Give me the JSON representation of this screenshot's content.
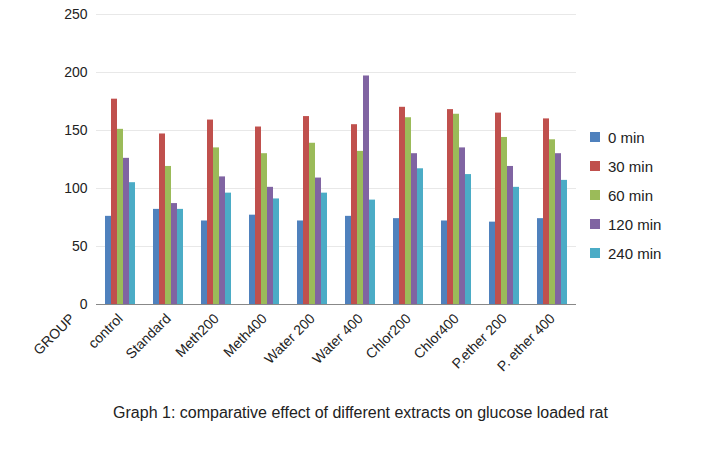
{
  "chart_data": {
    "type": "bar",
    "title": "Graph 1: comparative effect of different extracts on glucose loaded rat",
    "categories": [
      "GROUP",
      "control",
      "Standard",
      "Meth200",
      "Meth400",
      "Water 200",
      "Water 400",
      "Chlor200",
      "Chlor400",
      "P.ether 200",
      "P. ether 400"
    ],
    "series": [
      {
        "name": "0 min",
        "color": "#4F81BD",
        "values": [
          null,
          76,
          82,
          72,
          77,
          72,
          76,
          74,
          72,
          71,
          74
        ]
      },
      {
        "name": "30 min",
        "color": "#C0504D",
        "values": [
          null,
          177,
          147,
          159,
          153,
          162,
          155,
          170,
          168,
          165,
          160
        ]
      },
      {
        "name": "60 min",
        "color": "#9BBB59",
        "values": [
          null,
          151,
          119,
          135,
          130,
          139,
          132,
          161,
          164,
          144,
          142
        ]
      },
      {
        "name": "120 min",
        "color": "#8064A2",
        "values": [
          null,
          126,
          87,
          110,
          101,
          109,
          197,
          130,
          135,
          119,
          130
        ]
      },
      {
        "name": "240 min",
        "color": "#4BACC6",
        "values": [
          null,
          105,
          82,
          96,
          91,
          96,
          90,
          117,
          112,
          101,
          107
        ]
      }
    ],
    "ylim": [
      0,
      250
    ],
    "yticks": [
      0,
      50,
      100,
      150,
      200,
      250
    ],
    "grid": true,
    "legend": "right"
  }
}
